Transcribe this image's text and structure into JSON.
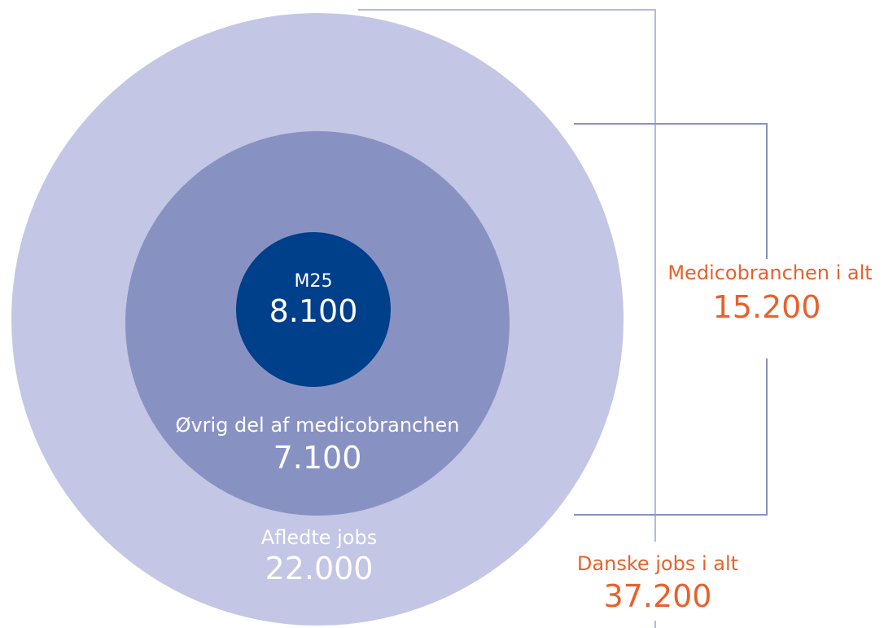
{
  "nodes": [
    {
      "label": "M25",
      "value": "8.100"
    },
    {
      "label": "Øvrig del af medicobranchen",
      "value": "7.100"
    },
    {
      "label": "Afledte jobs",
      "value": "22.000"
    }
  ],
  "totals": [
    {
      "label": "Medicobranchen i alt",
      "value": "15.200"
    },
    {
      "label": "Danske jobs i alt",
      "value": "37.200"
    }
  ]
}
